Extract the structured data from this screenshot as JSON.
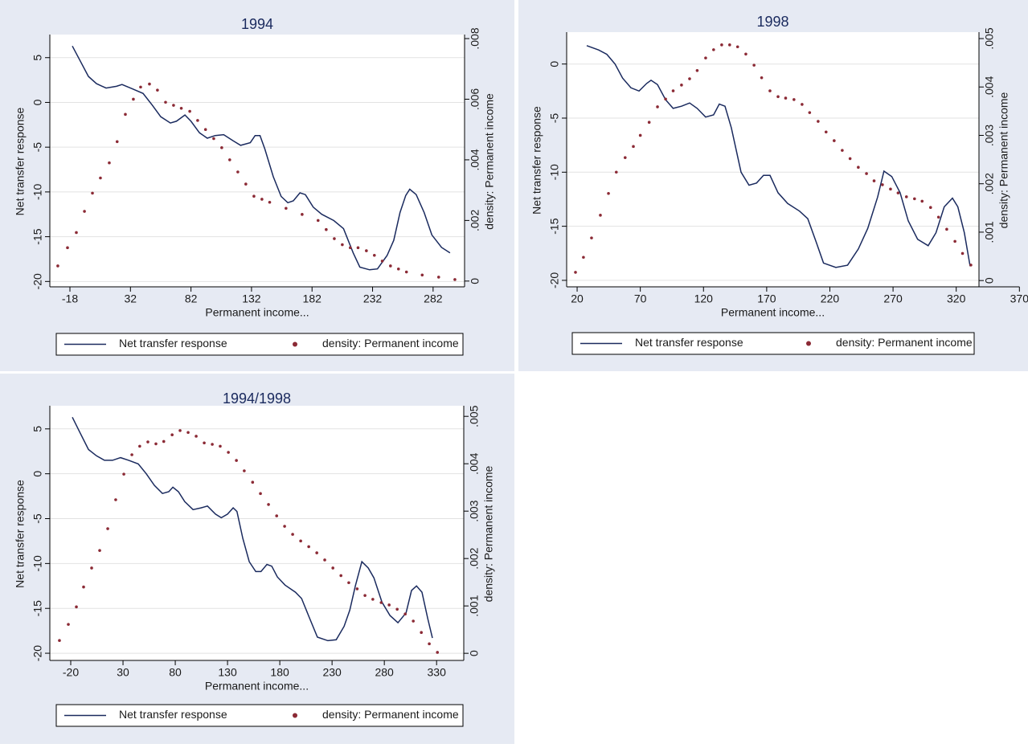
{
  "chart_data": [
    {
      "type": "line",
      "title": "1994",
      "x_label": "Permanent income...",
      "y_label": "Net transfer response",
      "y2_label": "density: Permanent income",
      "xlim": [
        -34.6,
        308
      ],
      "ylim": [
        -20.6,
        7.4
      ],
      "y2lim": [
        -0.00019,
        0.00808
      ],
      "xticks": [
        -18,
        32,
        82,
        132,
        182,
        232,
        282
      ],
      "yticks": [
        -20,
        -15,
        -10,
        -5,
        0,
        5
      ],
      "y2ticks": [
        0,
        {
          "value": 0.002,
          "label": ".002"
        },
        {
          "value": 0.004,
          "label": ".004"
        },
        {
          "value": 0.006,
          "label": ".006"
        },
        {
          "value": 0.008,
          "label": ".008"
        }
      ],
      "grid": true,
      "legend": "bottom",
      "series": [
        {
          "name": "Net transfer response",
          "type": "line",
          "color": "#1a2a5e",
          "x": [
            -16,
            -9.4,
            -2.7,
            3.9,
            11.9,
            20.5,
            25,
            33.8,
            42.4,
            50,
            57,
            65,
            70,
            77,
            82,
            89,
            95.5,
            102,
            109,
            117,
            123,
            131,
            135,
            139,
            143,
            150,
            156.5,
            162,
            166.5,
            172,
            176.5,
            183,
            190,
            200,
            208,
            216,
            221.5,
            229.5,
            236,
            244,
            249.5,
            254.7,
            259.4,
            262.7,
            268,
            274.6,
            281,
            289,
            296
          ],
          "values": [
            6.3,
            4.6,
            2.9,
            2.1,
            1.6,
            1.8,
            2.0,
            1.5,
            1.0,
            -0.3,
            -1.6,
            -2.3,
            -2.1,
            -1.4,
            -2.1,
            -3.4,
            -4.0,
            -3.7,
            -3.6,
            -4.3,
            -4.8,
            -4.5,
            -3.7,
            -3.7,
            -5.2,
            -8.3,
            -10.5,
            -11.2,
            -11.0,
            -10.1,
            -10.3,
            -11.7,
            -12.5,
            -13.2,
            -14.1,
            -16.8,
            -18.4,
            -18.7,
            -18.6,
            -17.1,
            -15.4,
            -12.3,
            -10.4,
            -9.7,
            -10.3,
            -12.3,
            -14.8,
            -16.2,
            -16.8
          ]
        },
        {
          "name": "density: Permanent income",
          "type": "scatter",
          "axis": "y2",
          "color": "#8b2a35",
          "x": [
            -28,
            -20,
            -12.7,
            -6,
            0.6,
            7.2,
            14.5,
            21,
            27.8,
            34.4,
            40.4,
            47.7,
            54.3,
            61,
            67.6,
            74,
            81,
            87.5,
            94,
            100.8,
            107.4,
            114,
            120.7,
            127.3,
            134,
            140.6,
            147,
            160.5,
            173.8,
            187,
            193.7,
            200.4,
            207,
            213.6,
            220,
            226.9,
            233.5,
            240,
            246.8,
            253.4,
            260,
            273,
            286.6,
            300
          ],
          "values": [
            0.0005,
            0.0011,
            0.0016,
            0.0023,
            0.0029,
            0.0034,
            0.0039,
            0.0046,
            0.0055,
            0.006,
            0.0064,
            0.0065,
            0.0063,
            0.0059,
            0.0058,
            0.0057,
            0.0056,
            0.0053,
            0.005,
            0.0047,
            0.0044,
            0.004,
            0.0036,
            0.0032,
            0.0028,
            0.0027,
            0.0026,
            0.0024,
            0.0022,
            0.002,
            0.0017,
            0.0014,
            0.0012,
            0.0011,
            0.0011,
            0.001,
            0.00085,
            0.00066,
            0.0005,
            0.0004,
            0.0003,
            0.0002,
            0.00013,
            5e-05
          ]
        }
      ]
    },
    {
      "type": "line",
      "title": "1998",
      "x_label": "Permanent income...",
      "y_label": "Net transfer response",
      "y2_label": "density: Permanent income",
      "xlim": [
        11.7,
        338
      ],
      "ylim": [
        -20.6,
        2.8
      ],
      "y2lim": [
        -0.00013,
        0.0051
      ],
      "xticks": [
        20,
        70,
        120,
        170,
        220,
        270,
        320,
        370
      ],
      "yticks": [
        -20,
        -15,
        -10,
        -5,
        0
      ],
      "y2ticks": [
        0,
        {
          "value": 0.001,
          "label": ".001"
        },
        {
          "value": 0.002,
          "label": ".002"
        },
        {
          "value": 0.003,
          "label": ".003"
        },
        {
          "value": 0.004,
          "label": ".004"
        },
        {
          "value": 0.005,
          "label": ".005"
        }
      ],
      "grid": true,
      "legend": "bottom",
      "series": [
        {
          "name": "Net transfer response",
          "type": "line",
          "color": "#1a2a5e",
          "x": [
            27.6,
            37,
            43.5,
            50,
            56,
            62.6,
            69,
            75,
            78.5,
            83.6,
            90,
            96,
            102.6,
            109,
            115,
            121.7,
            128,
            132.5,
            137,
            142,
            149.7,
            156,
            162,
            167.5,
            172.6,
            179,
            186.6,
            196,
            202.5,
            209,
            215,
            224.7,
            234,
            242.5,
            250,
            257.8,
            262.8,
            269,
            275.6,
            282,
            289.5,
            297.8,
            304,
            310.5,
            317,
            321.3,
            326.4,
            331
          ],
          "values": [
            1.7,
            1.3,
            0.9,
            0,
            -1.3,
            -2.2,
            -2.5,
            -1.8,
            -1.5,
            -1.9,
            -3.3,
            -4.1,
            -3.9,
            -3.6,
            -4.1,
            -4.9,
            -4.7,
            -3.7,
            -3.9,
            -5.9,
            -10.0,
            -11.2,
            -11.0,
            -10.3,
            -10.3,
            -11.9,
            -12.9,
            -13.6,
            -14.3,
            -16.4,
            -18.4,
            -18.8,
            -18.6,
            -17.1,
            -15.2,
            -12.3,
            -9.9,
            -10.4,
            -11.9,
            -14.5,
            -16.2,
            -16.8,
            -15.6,
            -13.2,
            -12.4,
            -13.2,
            -15.6,
            -18.7
          ]
        },
        {
          "name": "density: Permanent income",
          "type": "scatter",
          "axis": "y2",
          "color": "#8b2a35",
          "x": [
            18.7,
            25,
            31.4,
            38.4,
            44.8,
            51,
            58,
            64.5,
            70,
            77,
            83.6,
            90,
            96,
            102.6,
            109,
            115,
            121.7,
            128,
            134.4,
            140.7,
            147,
            153.5,
            160,
            166,
            172.6,
            179,
            185,
            191.6,
            198,
            204,
            210.7,
            217,
            223.4,
            229.8,
            236,
            242.5,
            249,
            255,
            261.6,
            268,
            274,
            280.6,
            287,
            293,
            299.7,
            306,
            312.5,
            319,
            325,
            331.6
          ],
          "values": [
            0.00017,
            0.00048,
            0.00088,
            0.00135,
            0.0018,
            0.00224,
            0.00254,
            0.00277,
            0.003,
            0.00327,
            0.00359,
            0.00375,
            0.00392,
            0.00404,
            0.00417,
            0.00434,
            0.0046,
            0.00477,
            0.00487,
            0.00487,
            0.00483,
            0.00468,
            0.00445,
            0.00419,
            0.00392,
            0.0038,
            0.00377,
            0.00374,
            0.00364,
            0.00347,
            0.00329,
            0.00307,
            0.00289,
            0.00269,
            0.00252,
            0.00234,
            0.00221,
            0.00206,
            0.00198,
            0.00189,
            0.00181,
            0.00173,
            0.00169,
            0.00164,
            0.00151,
            0.00131,
            0.00106,
            0.00081,
            0.00056,
            0.00032
          ]
        }
      ]
    },
    {
      "type": "line",
      "title": "1994/1998",
      "x_label": "Permanent income...",
      "y_label": "Net transfer response",
      "y2_label": "density: Permanent income",
      "xlim": [
        -40,
        356
      ],
      "ylim": [
        -20.8,
        7.4
      ],
      "y2lim": [
        -0.00015,
        0.00519
      ],
      "xticks": [
        -20,
        30,
        80,
        130,
        180,
        230,
        280,
        330
      ],
      "yticks": [
        -20,
        -15,
        -10,
        -5,
        0,
        5
      ],
      "y2ticks": [
        0,
        {
          "value": 0.001,
          "label": ".001"
        },
        {
          "value": 0.002,
          "label": ".002"
        },
        {
          "value": 0.003,
          "label": ".003"
        },
        {
          "value": 0.004,
          "label": ".004"
        },
        {
          "value": 0.005,
          "label": ".005"
        }
      ],
      "grid": true,
      "legend": "bottom",
      "series": [
        {
          "name": "Net transfer response",
          "type": "line",
          "color": "#1a2a5e",
          "x": [
            -18.5,
            -10.8,
            -3,
            4.6,
            12.3,
            20,
            27.7,
            35.4,
            44.6,
            52.3,
            60,
            67.7,
            73.8,
            77.7,
            83,
            89,
            97,
            104.6,
            110.8,
            118.5,
            124,
            130,
            135.4,
            139,
            144.6,
            150.8,
            157,
            162,
            167.7,
            172.3,
            177.7,
            185,
            195,
            200.8,
            208.5,
            216,
            226,
            234,
            241.5,
            247,
            252.3,
            258.5,
            264.6,
            270,
            277.7,
            285.4,
            293,
            300.8,
            306,
            310.8,
            316,
            321.5,
            326
          ],
          "values": [
            6.3,
            4.5,
            2.7,
            2.0,
            1.5,
            1.5,
            1.8,
            1.5,
            1.1,
            0,
            -1.3,
            -2.2,
            -2.0,
            -1.5,
            -2.0,
            -3.1,
            -4.0,
            -3.8,
            -3.6,
            -4.5,
            -4.9,
            -4.5,
            -3.8,
            -4.2,
            -7.2,
            -9.8,
            -10.9,
            -10.9,
            -10.1,
            -10.3,
            -11.5,
            -12.4,
            -13.2,
            -13.9,
            -16.1,
            -18.2,
            -18.6,
            -18.5,
            -17.0,
            -15.2,
            -12.5,
            -9.8,
            -10.5,
            -11.6,
            -14.3,
            -15.8,
            -16.6,
            -15.5,
            -13.0,
            -12.5,
            -13.2,
            -16.1,
            -18.3
          ]
        },
        {
          "name": "density: Permanent income",
          "type": "scatter",
          "axis": "y2",
          "color": "#8b2a35",
          "x": [
            -30.8,
            -22.3,
            -14.6,
            -7.7,
            0,
            7.7,
            15.4,
            23,
            30.8,
            38.5,
            46,
            53.8,
            61.5,
            69,
            77,
            84.6,
            92.3,
            100,
            107.7,
            115.4,
            123,
            130.8,
            138.5,
            146,
            154,
            161.5,
            169.2,
            177,
            184.6,
            192.3,
            200,
            207.7,
            215.4,
            223,
            230.8,
            238.5,
            246,
            254,
            261.5,
            269,
            277,
            284.6,
            292.3,
            300,
            307.7,
            315.4,
            323,
            330.8
          ],
          "values": [
            0.00027,
            0.00061,
            0.00098,
            0.0014,
            0.0018,
            0.00217,
            0.00263,
            0.00324,
            0.00378,
            0.00419,
            0.00437,
            0.00446,
            0.00442,
            0.00447,
            0.00461,
            0.0047,
            0.00466,
            0.00458,
            0.00444,
            0.00441,
            0.00437,
            0.00424,
            0.00407,
            0.00385,
            0.00361,
            0.00337,
            0.00314,
            0.0029,
            0.00268,
            0.00251,
            0.00237,
            0.00225,
            0.00212,
            0.00197,
            0.0018,
            0.00164,
            0.00149,
            0.00136,
            0.00122,
            0.00114,
            0.00107,
            0.00102,
            0.00093,
            0.00083,
            0.00068,
            0.00044,
            0.0002,
            2e-05
          ]
        }
      ]
    }
  ]
}
